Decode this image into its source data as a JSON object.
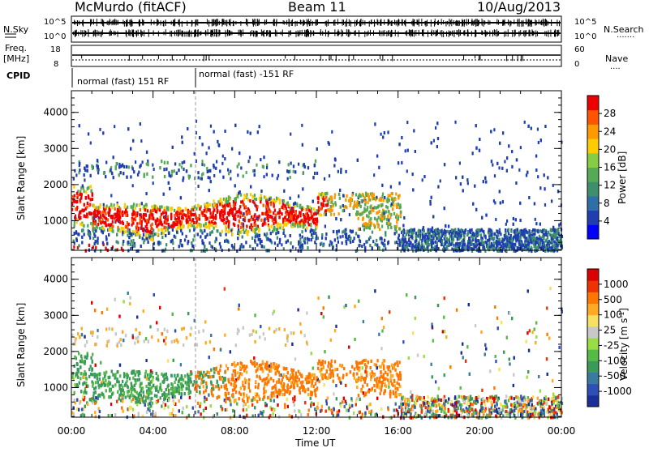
{
  "header": {
    "station": "McMurdo (fitACF)",
    "beam": "Beam 11",
    "date": "10/Aug/2013"
  },
  "noise_panel": {
    "left_label": "N.Sky",
    "right_label": "N.Search",
    "left_ticks": [
      "10^5",
      "10^0"
    ],
    "right_ticks": [
      "10^5",
      "10^0"
    ]
  },
  "freq_panel": {
    "left_label_line1": "Freq.",
    "left_label_line2": "[MHz]",
    "left_ticks": [
      "18",
      "8"
    ],
    "right_ticks": [
      "60",
      "0"
    ],
    "right_label": "Nave"
  },
  "cpid": {
    "label": "CPID",
    "segments": [
      {
        "text": "normal (fast) 151 RF"
      },
      {
        "text": "normal (fast) -151 RF"
      }
    ]
  },
  "power_colorbar": {
    "label": "Power [dB]",
    "ticks": [
      "28",
      "24",
      "20",
      "16",
      "12",
      "8",
      "4"
    ],
    "colors": [
      "#0000ff",
      "#1f3fb0",
      "#2f6fa8",
      "#3f8f6f",
      "#55aa55",
      "#88cc44",
      "#ffcc00",
      "#ff9900",
      "#ff5500",
      "#ee0000"
    ]
  },
  "velocity_colorbar": {
    "label": "Velocity [m s",
    "label_sup": "-1",
    "label_end": "]",
    "ticks": [
      "1000",
      "500",
      "100",
      "25",
      "-25",
      "-100",
      "-500",
      "-1000"
    ],
    "colors": [
      "#1a2f9a",
      "#2f4fb8",
      "#3a7a9f",
      "#3a9a5a",
      "#55bb44",
      "#99dd44",
      "#c8c8c8",
      "#f8e060",
      "#ffaa22",
      "#ff7700",
      "#ee3300",
      "#dd0000"
    ]
  },
  "chart_data": {
    "type": "heatmap",
    "xlabel": "Time UT",
    "x_ticks": [
      "00:00",
      "04:00",
      "08:00",
      "12:00",
      "16:00",
      "20:00",
      "00:00"
    ],
    "ylabel": "Slant Range [km]",
    "y_ticks": [
      "1000",
      "2000",
      "3000",
      "4000"
    ],
    "ylim": [
      180,
      4600
    ],
    "xlim_hours": [
      0,
      24
    ],
    "panels": [
      "Power [dB]",
      "Velocity [m s-1]"
    ]
  }
}
